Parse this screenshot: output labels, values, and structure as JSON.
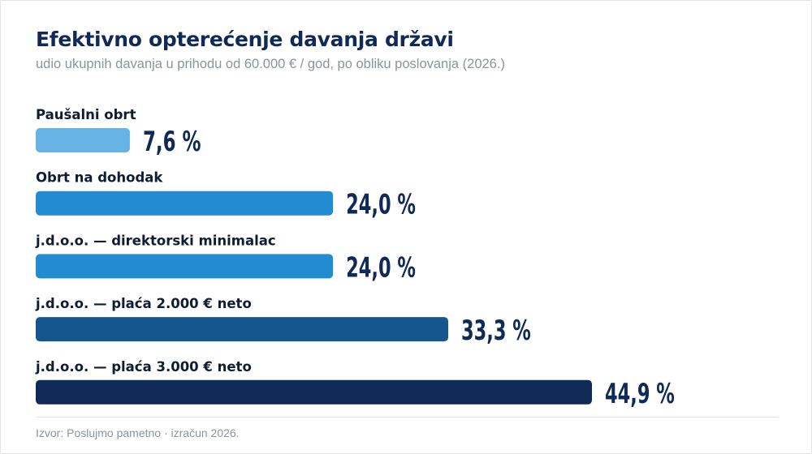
{
  "title": "Efektivno opterećenje davanja državi",
  "subtitle": "udio ukupnih davanja u prihodu od 60.000 € / god, po obliku poslovanja (2026.)",
  "source": "Izvor: Poslujmo pametno · izračun 2026.",
  "chart_data": {
    "type": "bar",
    "orientation": "horizontal",
    "categories": [
      "Paušalni obrt",
      "Obrt na dohodak",
      "j.d.o.o. — direktorski minimalac",
      "j.d.o.o. — plaća 2.000 € neto",
      "j.d.o.o. — plaća 3.000 € neto"
    ],
    "values": [
      7.6,
      24.0,
      24.0,
      33.3,
      44.9
    ],
    "value_labels": [
      "7,6 %",
      "24,0 %",
      "24,0 %",
      "33,3 %",
      "44,9 %"
    ],
    "colors": [
      "#67b3e3",
      "#238bd0",
      "#238bd0",
      "#15568f",
      "#0f2a57"
    ],
    "xlim": [
      0,
      50
    ],
    "grid": false,
    "legend": "none"
  }
}
